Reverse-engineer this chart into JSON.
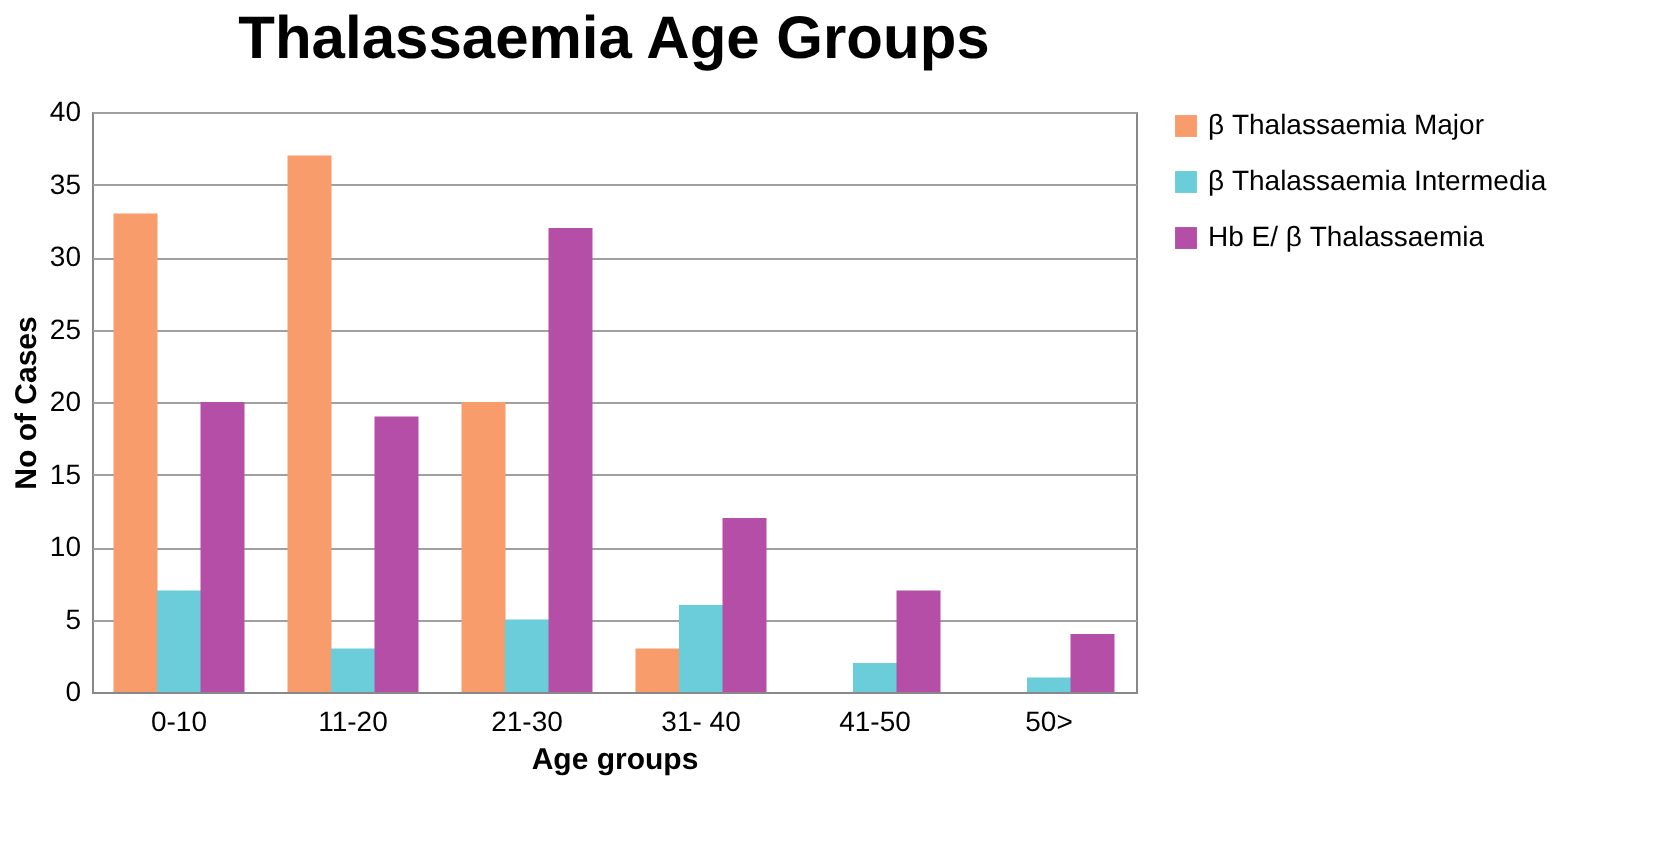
{
  "chart_data": {
    "type": "bar",
    "title": "Thalassaemia Age Groups",
    "xlabel": "Age groups",
    "ylabel": "No of Cases",
    "categories": [
      "0-10",
      "11-20",
      "21-30",
      "31- 40",
      "41-50",
      "50>"
    ],
    "series": [
      {
        "name": "β Thalassaemia Major",
        "color": "#f79c6a",
        "values": [
          33,
          37,
          20,
          3,
          0,
          0
        ]
      },
      {
        "name": "β Thalassaemia Intermedia",
        "color": "#6bcdd9",
        "values": [
          7,
          3,
          5,
          6,
          2,
          1
        ]
      },
      {
        "name": "Hb E/ β Thalassaemia",
        "color": "#b54ea6",
        "values": [
          20,
          19,
          32,
          12,
          7,
          4
        ]
      }
    ],
    "ylim": [
      0,
      40
    ],
    "yticks": [
      0,
      5,
      10,
      15,
      20,
      25,
      30,
      35,
      40
    ],
    "grid": "y",
    "legend": "right"
  }
}
